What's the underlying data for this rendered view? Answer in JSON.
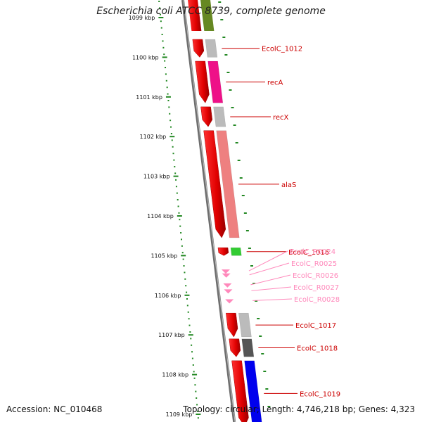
{
  "title": "Escherichia coli ATCC 8739, complete genome",
  "footer": {
    "accession_label": "Accession:",
    "accession": "NC_010468",
    "topology_label": "Topology:",
    "topology": "circular",
    "length_label": "Length:",
    "length": "4,746,218 bp",
    "genes_label": "Genes:",
    "genes": "4,323"
  },
  "colors": {
    "backbone": "#6e6e6e",
    "tick": "#228822",
    "cds_forward": "#ff0000",
    "gene_label": "#cc0000",
    "rna_label": "#ff88bb",
    "rna": "#ff88bb"
  },
  "ticks": [
    {
      "label": "1099 kbp"
    },
    {
      "label": "1100 kbp"
    },
    {
      "label": "1101 kbp"
    },
    {
      "label": "1102 kbp"
    },
    {
      "label": "1103 kbp"
    },
    {
      "label": "1104 kbp"
    },
    {
      "label": "1105 kbp"
    },
    {
      "label": "1106 kbp"
    },
    {
      "label": "1107 kbp"
    },
    {
      "label": "1108 kbp"
    },
    {
      "label": "1109 kbp"
    }
  ],
  "genes_list": [
    {
      "label": "EcolC_1012",
      "start_kbp": 1099.55,
      "end_kbp": 1100.0,
      "kind": "cds",
      "func_color": "#bbbbbb"
    },
    {
      "label": "recA",
      "start_kbp": 1100.1,
      "end_kbp": 1101.15,
      "kind": "cds",
      "func_color": "#ee1188"
    },
    {
      "label": "recX",
      "start_kbp": 1101.25,
      "end_kbp": 1101.75,
      "kind": "cds",
      "func_color": "#bbbbbb"
    },
    {
      "label": "alaS",
      "start_kbp": 1101.85,
      "end_kbp": 1104.55,
      "kind": "cds",
      "func_color": "#ee8080"
    },
    {
      "label": "EcolC_1016",
      "start_kbp": 1104.8,
      "end_kbp": 1105.0,
      "kind": "cds",
      "func_color": "#33cc33"
    },
    {
      "label": "EcolC_R0024",
      "start_kbp": 1105.35,
      "end_kbp": 1105.42,
      "kind": "rna",
      "func_color": ""
    },
    {
      "label": "EcolC_R0025",
      "start_kbp": 1105.45,
      "end_kbp": 1105.52,
      "kind": "rna",
      "func_color": ""
    },
    {
      "label": "EcolC_R0026",
      "start_kbp": 1105.7,
      "end_kbp": 1105.77,
      "kind": "rna",
      "func_color": ""
    },
    {
      "label": "EcolC_R0027",
      "start_kbp": 1105.85,
      "end_kbp": 1105.92,
      "kind": "rna",
      "func_color": ""
    },
    {
      "label": "EcolC_R0028",
      "start_kbp": 1106.1,
      "end_kbp": 1106.17,
      "kind": "rna",
      "func_color": ""
    },
    {
      "label": "EcolC_1017",
      "start_kbp": 1106.45,
      "end_kbp": 1107.05,
      "kind": "cds",
      "func_color": "#bbbbbb"
    },
    {
      "label": "EcolC_1018",
      "start_kbp": 1107.1,
      "end_kbp": 1107.55,
      "kind": "cds",
      "func_color": "#555555"
    },
    {
      "label": "EcolC_1019",
      "start_kbp": 1107.65,
      "end_kbp": 1109.3,
      "kind": "cds",
      "func_color": "#0000ee"
    }
  ],
  "partial_top": {
    "func_color": "#668822"
  }
}
